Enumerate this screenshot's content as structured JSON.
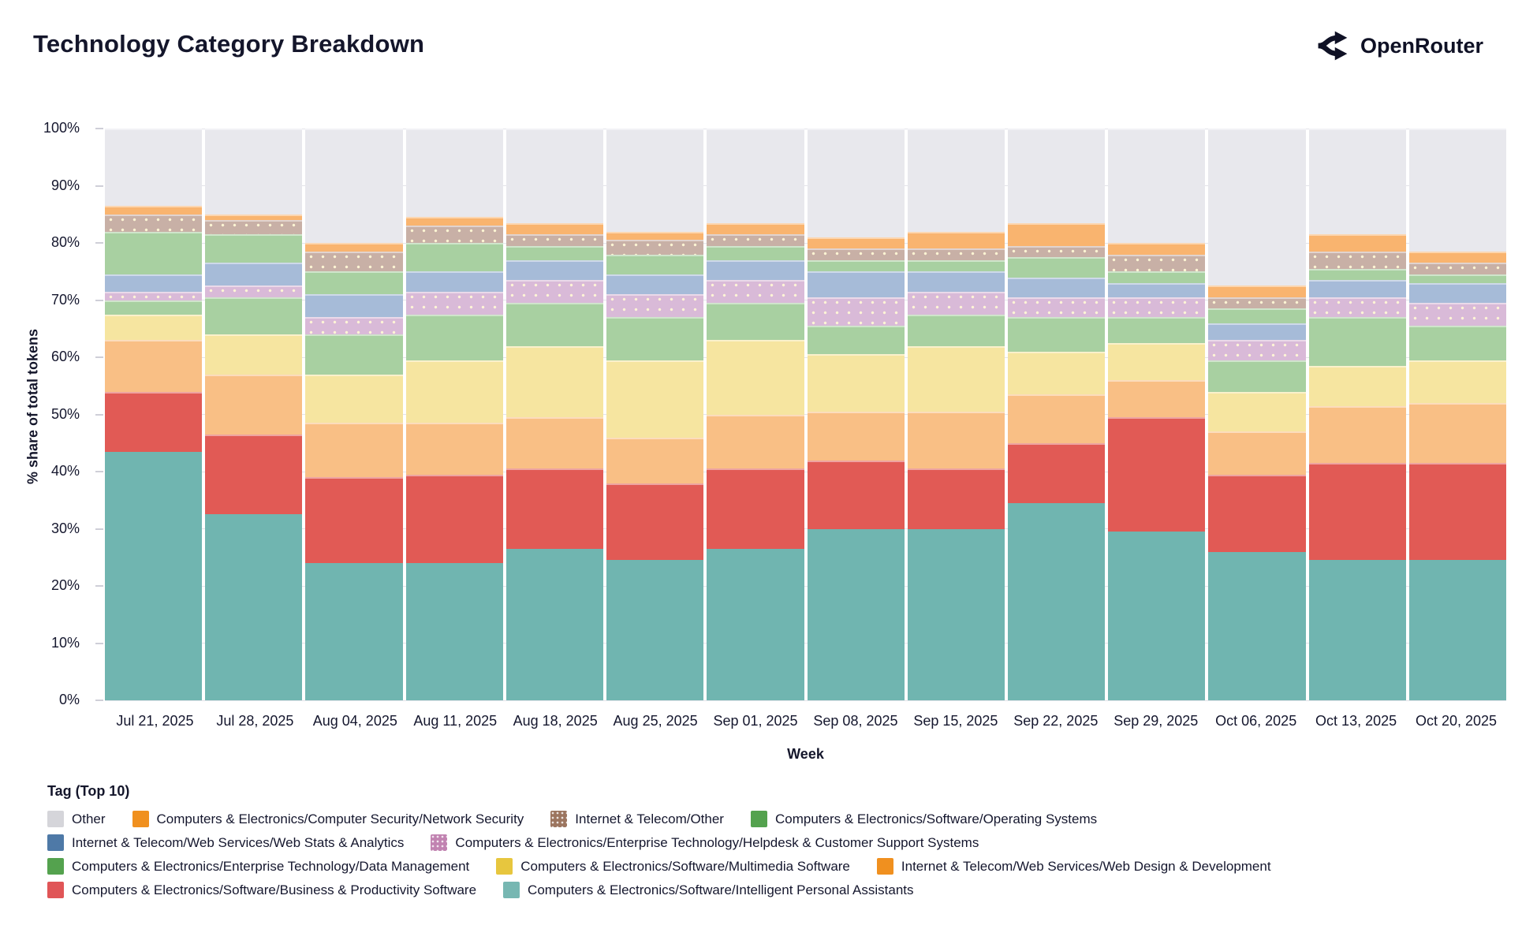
{
  "header": {
    "title": "Technology Category Breakdown",
    "logo_text": "OpenRouter"
  },
  "chart_data": {
    "type": "bar",
    "variant": "stacked-percent",
    "title": "Technology Category Breakdown",
    "xlabel": "Week",
    "ylabel": "% share of total tokens",
    "ylim": [
      0,
      100
    ],
    "y_ticks": [
      "0%",
      "10%",
      "20%",
      "30%",
      "40%",
      "50%",
      "60%",
      "70%",
      "80%",
      "90%",
      "100%"
    ],
    "grid": true,
    "categories": [
      "Jul 21, 2025",
      "Jul 28, 2025",
      "Aug 04, 2025",
      "Aug 11, 2025",
      "Aug 18, 2025",
      "Aug 25, 2025",
      "Sep 01, 2025",
      "Sep 08, 2025",
      "Sep 15, 2025",
      "Sep 22, 2025",
      "Sep 29, 2025",
      "Oct 06, 2025",
      "Oct 13, 2025",
      "Oct 20, 2025"
    ],
    "series": [
      {
        "id": "personal-assistants",
        "name": "Computers & Electronics/Software/Intelligent Personal Assistants",
        "legend_color": "#77b7b2",
        "fill": "#70b5b0",
        "pattern": false,
        "values": [
          43.5,
          32.5,
          24,
          24,
          26.5,
          24.5,
          26.5,
          30,
          30,
          34.5,
          29.5,
          26,
          24.5,
          24.5
        ]
      },
      {
        "id": "business-productivity",
        "name": "Computers & Electronics/Software/Business & Productivity Software",
        "legend_color": "#e05557",
        "fill": "#e15a55",
        "pattern": false,
        "values": [
          10.5,
          14,
          15,
          15.5,
          14,
          13.5,
          14,
          12,
          10.5,
          10.5,
          20,
          13.5,
          17,
          17
        ]
      },
      {
        "id": "web-design",
        "name": "Internet & Telecom/Web Services/Web Design & Development",
        "legend_color": "#f0901f",
        "fill": "#f9bf85",
        "pattern": false,
        "values": [
          9,
          10.5,
          9.5,
          9,
          9,
          8,
          9.5,
          8.5,
          10,
          8.5,
          6.5,
          7.5,
          10,
          10.5
        ]
      },
      {
        "id": "multimedia",
        "name": "Computers & Electronics/Software/Multimedia Software",
        "legend_color": "#e7c63e",
        "fill": "#f6e5a0",
        "pattern": false,
        "values": [
          4.5,
          7,
          8.5,
          11,
          12.5,
          13.5,
          13,
          10,
          11.5,
          7.5,
          6.5,
          7,
          7,
          7.5
        ]
      },
      {
        "id": "data-management",
        "name": "Computers & Electronics/Enterprise Technology/Data Management",
        "legend_color": "#54a24e",
        "fill": "#a8d0a1",
        "pattern": false,
        "values": [
          2.5,
          6.5,
          7,
          8,
          7.5,
          7.5,
          6.5,
          5,
          5.5,
          6,
          4.5,
          5.5,
          8.5,
          6
        ]
      },
      {
        "id": "helpdesk",
        "name": "Computers & Electronics/Enterprise Technology/Helpdesk & Customer Support Systems",
        "legend_color": "#c183b1",
        "fill": "#d9bad8",
        "pattern": true,
        "values": [
          1.5,
          2,
          3,
          4,
          4,
          4,
          4,
          5,
          4,
          3.5,
          3.5,
          3.5,
          3.5,
          4
        ]
      },
      {
        "id": "web-stats",
        "name": "Internet & Telecom/Web Services/Web Stats & Analytics",
        "legend_color": "#4e79a7",
        "fill": "#a6bbd8",
        "pattern": false,
        "values": [
          3,
          4,
          4,
          3.5,
          3.5,
          3.5,
          3.5,
          4.5,
          3.5,
          3.5,
          2.5,
          3,
          3,
          3.5
        ]
      },
      {
        "id": "operating-systems",
        "name": "Computers & Electronics/Software/Operating Systems",
        "legend_color": "#54a24e",
        "fill": "#a8d0a1",
        "pattern": false,
        "values": [
          7.5,
          5,
          4,
          5,
          2.5,
          3.5,
          2.5,
          2,
          2,
          3.5,
          2,
          2.5,
          2,
          1.5
        ]
      },
      {
        "id": "internet-telecom-other",
        "name": "Internet & Telecom/Other",
        "legend_color": "#9c755f",
        "fill": "#c8b0a6",
        "pattern": true,
        "values": [
          3,
          2.5,
          3.5,
          3,
          2,
          2.5,
          2,
          2,
          2,
          2,
          3,
          2,
          3,
          2
        ]
      },
      {
        "id": "network-security",
        "name": "Computers & Electronics/Computer Security/Network Security",
        "legend_color": "#f0901f",
        "fill": "#f9b46f",
        "pattern": false,
        "values": [
          1.5,
          1,
          1.5,
          1.5,
          2,
          1.5,
          2,
          2,
          3,
          4,
          2,
          2,
          3,
          2
        ]
      },
      {
        "id": "other",
        "name": "Other",
        "legend_color": "#d5d5da",
        "fill": "#e8e8ed",
        "pattern": false,
        "values": [
          13.5,
          15,
          20,
          15.5,
          16.5,
          18,
          16.5,
          19,
          18,
          16.5,
          20,
          27.5,
          18.5,
          21.5
        ]
      }
    ],
    "legend": {
      "title": "Tag (Top 10)",
      "position": "bottom",
      "rows": [
        [
          "other",
          "network-security",
          "internet-telecom-other",
          "operating-systems"
        ],
        [
          "web-stats",
          "helpdesk"
        ],
        [
          "data-management",
          "multimedia",
          "web-design"
        ],
        [
          "business-productivity",
          "personal-assistants"
        ]
      ]
    }
  }
}
